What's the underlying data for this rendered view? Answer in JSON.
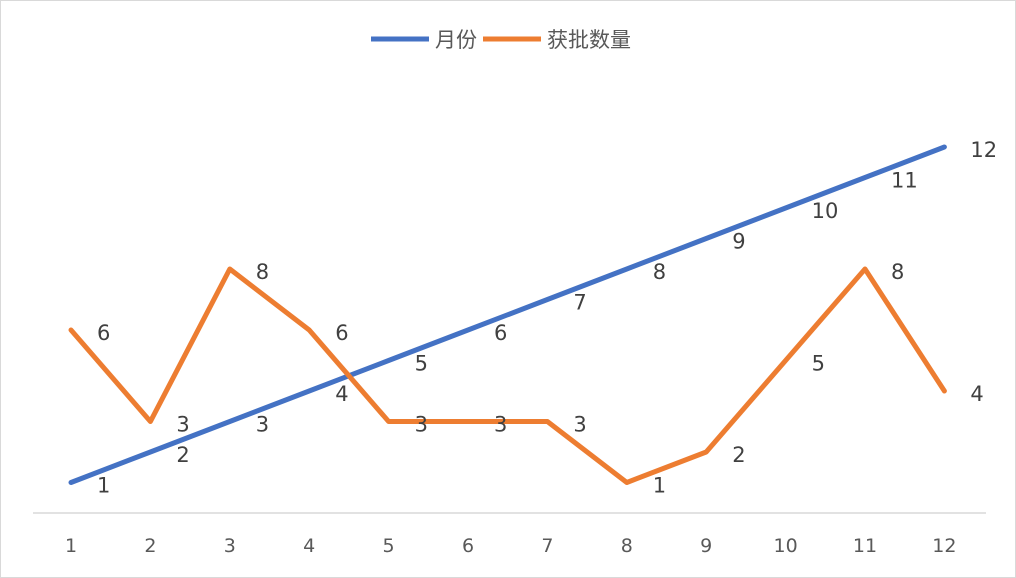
{
  "chart_data": {
    "type": "line",
    "title": "",
    "xlabel": "",
    "ylabel": "",
    "categories": [
      "1",
      "2",
      "3",
      "4",
      "5",
      "6",
      "7",
      "8",
      "9",
      "10",
      "11",
      "12"
    ],
    "ylim": [
      0,
      14
    ],
    "grid": false,
    "legend_position": "top",
    "series": [
      {
        "name": "月份",
        "color": "#4472C4",
        "values": [
          1,
          2,
          3,
          4,
          5,
          6,
          7,
          8,
          9,
          10,
          11,
          12
        ]
      },
      {
        "name": "获批数量",
        "color": "#ED7D31",
        "values": [
          6,
          3,
          8,
          6,
          3,
          3,
          3,
          1,
          2,
          5,
          8,
          4
        ]
      }
    ]
  }
}
